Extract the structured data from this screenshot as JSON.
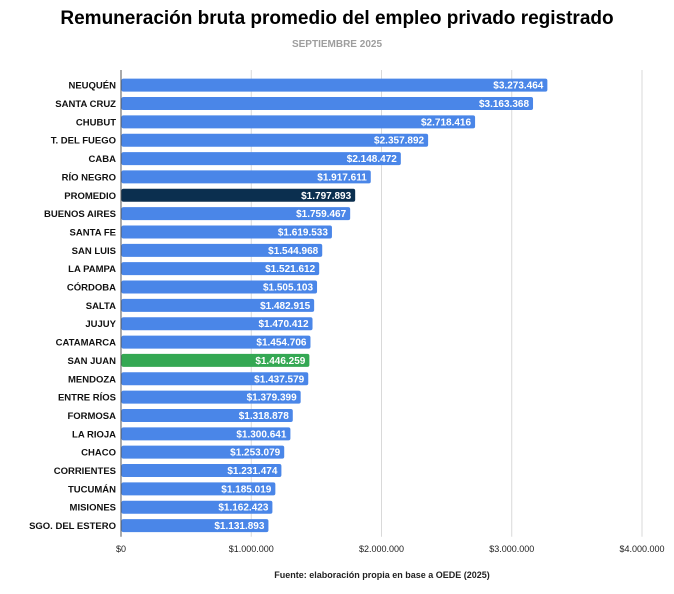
{
  "title": "Remuneración bruta promedio del empleo privado registrado",
  "subtitle": "SEPTIEMBRE 2025",
  "source": "Fuente: elaboración propia en base a OEDE (2025)",
  "colors": {
    "default_bar": "#4a86e8",
    "highlight_average": "#0b2f4f",
    "highlight_province": "#34a853",
    "grid": "#d9d9d9",
    "axis_text": "#222222"
  },
  "chart_data": {
    "type": "bar",
    "orientation": "horizontal",
    "title": "Remuneración bruta promedio del empleo privado registrado",
    "subtitle": "SEPTIEMBRE 2025",
    "xlim": [
      0,
      4000000
    ],
    "x_ticks": [
      0,
      1000000,
      2000000,
      3000000,
      4000000
    ],
    "x_tick_labels": [
      "$0",
      "$1.000.000",
      "$2.000.000",
      "$3.000.000",
      "$4.000.000"
    ],
    "grid": true,
    "categories": [
      "NEUQUÉN",
      "SANTA CRUZ",
      "CHUBUT",
      "T. DEL FUEGO",
      "CABA",
      "RÍO NEGRO",
      "PROMEDIO",
      "BUENOS AIRES",
      "SANTA FE",
      "SAN LUIS",
      "LA PAMPA",
      "CÓRDOBA",
      "SALTA",
      "JUJUY",
      "CATAMARCA",
      "SAN JUAN",
      "MENDOZA",
      "ENTRE RÍOS",
      "FORMOSA",
      "LA RIOJA",
      "CHACO",
      "CORRIENTES",
      "TUCUMÁN",
      "MISIONES",
      "SGO. DEL ESTERO"
    ],
    "values": [
      3273464,
      3163368,
      2718416,
      2357892,
      2148472,
      1917611,
      1797893,
      1759467,
      1619533,
      1544968,
      1521612,
      1505103,
      1482915,
      1470412,
      1454706,
      1446259,
      1437579,
      1379399,
      1318878,
      1300641,
      1253079,
      1231474,
      1185019,
      1162423,
      1131893
    ],
    "value_labels": [
      "$3.273.464",
      "$3.163.368",
      "$2.718.416",
      "$2.357.892",
      "$2.148.472",
      "$1.917.611",
      "$1.797.893",
      "$1.759.467",
      "$1.619.533",
      "$1.544.968",
      "$1.521.612",
      "$1.505.103",
      "$1.482.915",
      "$1.470.412",
      "$1.454.706",
      "$1.446.259",
      "$1.437.579",
      "$1.379.399",
      "$1.318.878",
      "$1.300.641",
      "$1.253.079",
      "$1.231.474",
      "$1.185.019",
      "$1.162.423",
      "$1.131.893"
    ],
    "highlights": {
      "PROMEDIO": "#0b2f4f",
      "SAN JUAN": "#34a853"
    }
  }
}
